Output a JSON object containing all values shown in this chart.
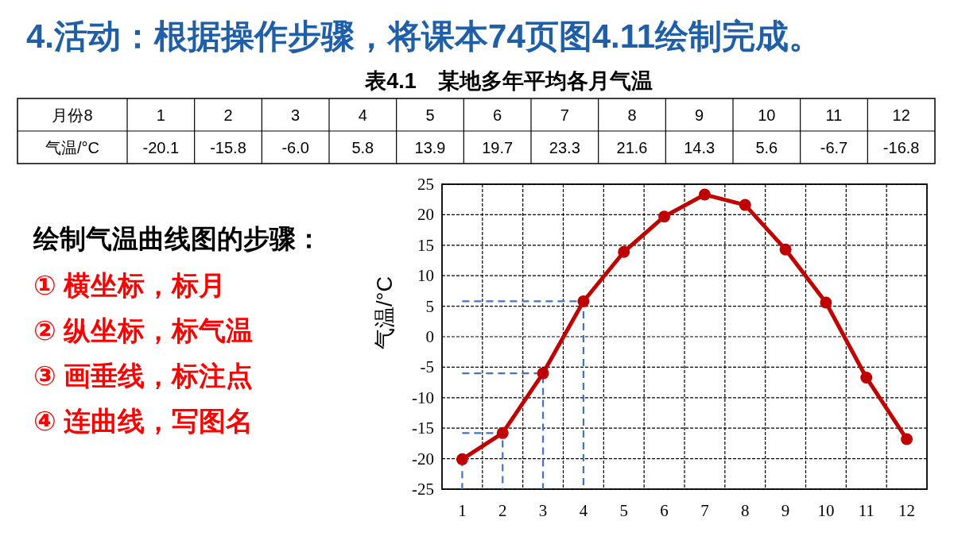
{
  "chart_data": {
    "type": "line",
    "title": "4.活动：根据操作步骤，将课本74页图4.11绘制完成。",
    "subtitle": "表4.1　某地多年平均各月气温",
    "ylabel": "气温/°C",
    "categories": [
      "1",
      "2",
      "3",
      "4",
      "5",
      "6",
      "7",
      "8",
      "9",
      "10",
      "11",
      "12"
    ],
    "series": [
      {
        "color": "#c00000",
        "marker": "circle",
        "values": [
          -20.1,
          -15.8,
          -6.0,
          5.8,
          13.9,
          19.7,
          23.3,
          21.6,
          14.3,
          5.6,
          -6.7,
          -16.8
        ]
      },
      {
        "color": "#4472c4",
        "line_style": "dashed",
        "marker": "none",
        "x": [
          "1",
          "1"
        ],
        "values": [
          -20.1,
          -25
        ]
      },
      {
        "color": "#4472c4",
        "line_style": "dashed",
        "marker": "none",
        "x": [
          "1",
          "2",
          "2"
        ],
        "values": [
          -15.8,
          -15.8,
          -25
        ]
      },
      {
        "color": "#4472c4",
        "line_style": "dashed",
        "marker": "none",
        "x": [
          "1",
          "3",
          "3"
        ],
        "values": [
          -6.0,
          -6.0,
          -25
        ]
      },
      {
        "color": "#4472c4",
        "line_style": "dashed",
        "marker": "none",
        "x": [
          "1",
          "4",
          "4"
        ],
        "values": [
          5.8,
          5.8,
          -25
        ]
      }
    ],
    "ylim": [
      -25,
      25
    ],
    "yticks": [
      -25,
      -20,
      -15,
      -10,
      -5,
      0,
      5,
      10,
      15,
      20,
      25
    ],
    "grid": true,
    "annotations": [
      "月份8",
      "气温/°C",
      "-20.1",
      "-15.8",
      "-6.0",
      "5.8",
      "13.9",
      "19.7",
      "23.3",
      "21.6",
      "14.3",
      "5.6",
      "-6.7",
      "-16.8",
      "绘制气温曲线图的步骤：",
      "① 横坐标，标月",
      "② 纵坐标，标气温",
      "③ 画垂线，标注点",
      "④ 连曲线，写图名"
    ]
  }
}
